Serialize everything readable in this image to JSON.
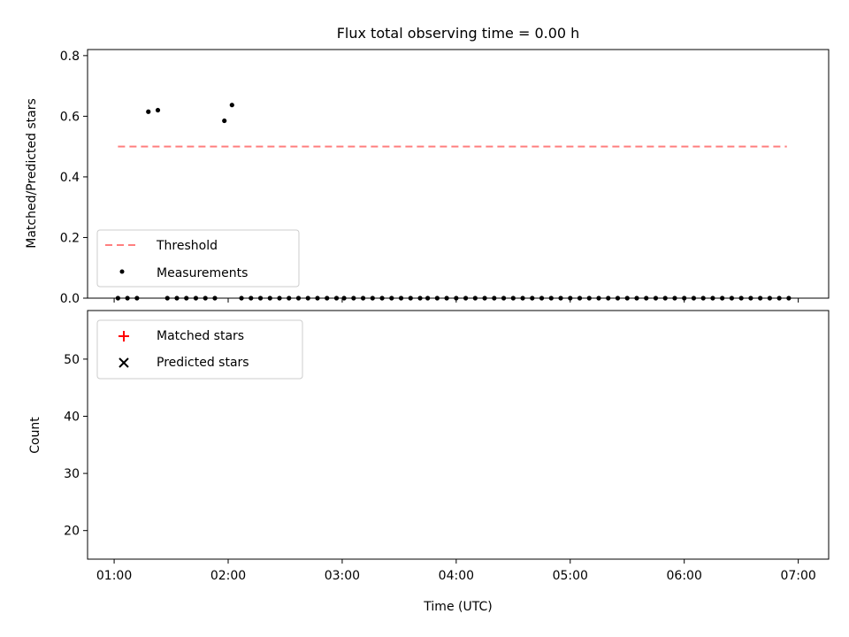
{
  "title": "Flux total observing time = 0.00 h",
  "colors": {
    "threshold": "#ff7f7f",
    "measurement": "#000000",
    "matched": "#ff0000",
    "predicted": "#000000"
  },
  "chart_data": [
    {
      "type": "scatter",
      "panel": "top",
      "title": "Flux total observing time = 0.00 h",
      "xlabel": "",
      "ylabel": "Matched/Predicted stars",
      "xlim": [
        "00:46",
        "07:16"
      ],
      "ylim": [
        0,
        0.82
      ],
      "x_ticks": [
        "01:00",
        "02:00",
        "03:00",
        "04:00",
        "05:00",
        "06:00",
        "07:00"
      ],
      "y_ticks": [
        "0.0",
        "0.2",
        "0.4",
        "0.6",
        "0.8"
      ],
      "legend_position": "lower-left",
      "series": [
        {
          "name": "Threshold",
          "style": "dashed-line",
          "x": [
            "01:02",
            "06:54"
          ],
          "values": [
            0.5,
            0.5
          ]
        },
        {
          "name": "Measurements",
          "style": "dot",
          "x": [
            "01:02",
            "01:07",
            "01:12",
            "01:18",
            "01:23",
            "01:28",
            "01:33",
            "01:38",
            "01:43",
            "01:48",
            "01:53",
            "01:58",
            "02:02",
            "02:07",
            "02:12",
            "02:17",
            "02:22",
            "02:27",
            "02:32",
            "02:37",
            "02:42",
            "02:47",
            "02:52",
            "02:57",
            "03:01",
            "03:06",
            "03:11",
            "03:16",
            "03:21",
            "03:26",
            "03:31",
            "03:36",
            "03:41",
            "03:45",
            "03:50",
            "03:55",
            "04:00",
            "04:05",
            "04:10",
            "04:15",
            "04:20",
            "04:25",
            "04:30",
            "04:35",
            "04:40",
            "04:45",
            "04:50",
            "04:55",
            "05:00",
            "05:05",
            "05:10",
            "05:15",
            "05:20",
            "05:25",
            "05:30",
            "05:35",
            "05:40",
            "05:45",
            "05:50",
            "05:55",
            "06:00",
            "06:05",
            "06:10",
            "06:15",
            "06:20",
            "06:25",
            "06:30",
            "06:35",
            "06:40",
            "06:45",
            "06:50",
            "06:55"
          ],
          "values": [
            0.0,
            0.0,
            0.0,
            0.615,
            0.62,
            0.0,
            0.0,
            0.0,
            0.0,
            0.0,
            0.0,
            0.585,
            0.637,
            0.0,
            0.0,
            0.0,
            0.0,
            0.0,
            0.0,
            0.0,
            0.0,
            0.0,
            0.0,
            0.0,
            0.0,
            0.0,
            0.0,
            0.0,
            0.0,
            0.0,
            0.0,
            0.0,
            0.0,
            0.0,
            0.0,
            0.0,
            0.0,
            0.0,
            0.0,
            0.0,
            0.0,
            0.0,
            0.0,
            0.0,
            0.0,
            0.0,
            0.0,
            0.0,
            0.0,
            0.0,
            0.0,
            0.0,
            0.0,
            0.0,
            0.0,
            0.0,
            0.0,
            0.0,
            0.0,
            0.0,
            0.0,
            0.0,
            0.0,
            0.0,
            0.0,
            0.0,
            0.0,
            0.0,
            0.0,
            0.0,
            0.0,
            0.0
          ]
        }
      ]
    },
    {
      "type": "scatter",
      "panel": "bottom",
      "title": "",
      "xlabel": "Time (UTC)",
      "ylabel": "Count",
      "xlim": [
        "00:46",
        "07:16"
      ],
      "ylim": [
        15,
        58.5
      ],
      "x_ticks": [
        "01:00",
        "02:00",
        "03:00",
        "04:00",
        "05:00",
        "06:00",
        "07:00"
      ],
      "y_ticks": [
        "20",
        "30",
        "40",
        "50"
      ],
      "legend_position": "upper-left",
      "series": [
        {
          "name": "Matched stars",
          "style": "plus",
          "x": [],
          "values": []
        },
        {
          "name": "Predicted stars",
          "style": "x",
          "x": [],
          "values": []
        }
      ]
    }
  ]
}
